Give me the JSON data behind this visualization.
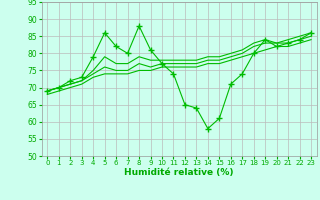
{
  "x": [
    0,
    1,
    2,
    3,
    4,
    5,
    6,
    7,
    8,
    9,
    10,
    11,
    12,
    13,
    14,
    15,
    16,
    17,
    18,
    19,
    20,
    21,
    22,
    23
  ],
  "line1": [
    69,
    70,
    72,
    73,
    79,
    86,
    82,
    80,
    88,
    81,
    77,
    74,
    65,
    64,
    58,
    61,
    71,
    74,
    80,
    84,
    82,
    83,
    84,
    86
  ],
  "line2": [
    69,
    70,
    71,
    72,
    75,
    79,
    77,
    77,
    79,
    78,
    78,
    78,
    78,
    78,
    79,
    79,
    80,
    81,
    83,
    84,
    83,
    84,
    85,
    86
  ],
  "line3": [
    69,
    70,
    71,
    72,
    74,
    76,
    75,
    75,
    77,
    76,
    77,
    77,
    77,
    77,
    78,
    78,
    79,
    80,
    82,
    83,
    83,
    83,
    84,
    85
  ],
  "line4": [
    68,
    69,
    70,
    71,
    73,
    74,
    74,
    74,
    75,
    75,
    76,
    76,
    76,
    76,
    77,
    77,
    78,
    79,
    80,
    81,
    82,
    82,
    83,
    84
  ],
  "xlabel": "Humidité relative (%)",
  "xlim": [
    -0.5,
    23.5
  ],
  "ylim": [
    50,
    95
  ],
  "yticks": [
    50,
    55,
    60,
    65,
    70,
    75,
    80,
    85,
    90,
    95
  ],
  "xticks": [
    0,
    1,
    2,
    3,
    4,
    5,
    6,
    7,
    8,
    9,
    10,
    11,
    12,
    13,
    14,
    15,
    16,
    17,
    18,
    19,
    20,
    21,
    22,
    23
  ],
  "line_color": "#00bb00",
  "bg_color": "#ccffee",
  "grid_color": "#bbbbbb",
  "marker": "+"
}
